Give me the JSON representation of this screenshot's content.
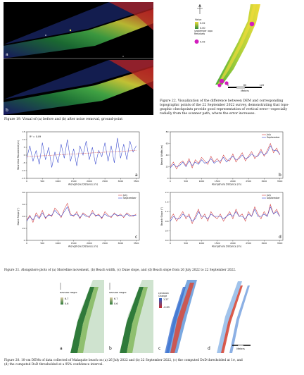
{
  "fig19": {
    "panel_a": "a",
    "panel_b": "b",
    "caption": "Figure 19.  Visual of (a) before and (b) after noise removal, ground-point"
  },
  "fig22": {
    "legend_value": "Value",
    "legend_high": "0.02",
    "legend_low": "0.00",
    "legend_residuals_title": "September Topo Residuals",
    "legend_residual_value": "0.05",
    "scale_labels": [
      "0",
      "60",
      "120"
    ],
    "scale_unit": "Meters",
    "caption_lines": [
      "Figure 22.  Visualization of the difference between DEM and corresponding",
      "topographic points of the 22 September 2022 survey, demonstrating that topo-",
      "graphic checkpoints provide good representation of vertical error—especially",
      "radially from the scanner path, where the error increases."
    ]
  },
  "fig21": {
    "caption": "Figure 21.  Alongshore plots of (a) Shoreline movement, (b) Beach width, (c) Dune slope, and (d) Beach slope from 26 July 2022 to 22 September 2022.",
    "legend": [
      "July",
      "September"
    ],
    "xlabel": "Alongshore Distance (m)",
    "xticks": [
      "0",
      "500",
      "1000",
      "1500",
      "2000",
      "2500",
      "3000",
      "3500"
    ],
    "chart_data": [
      {
        "type": "line",
        "panel": "a",
        "ylabel": "Shoreline Movement (m)",
        "annotation": "R² = 0.09",
        "ylim": [
          -15,
          15
        ],
        "yticks": [
          "15",
          "10",
          "5",
          "0",
          "-5",
          "-10",
          "-15"
        ],
        "x": [
          0,
          100,
          200,
          300,
          400,
          500,
          600,
          700,
          800,
          900,
          1000,
          1100,
          1200,
          1300,
          1400,
          1500,
          1600,
          1700,
          1800,
          1900,
          2000,
          2100,
          2200,
          2300,
          2400,
          2500,
          2600,
          2700,
          2800,
          2900,
          3000,
          3100,
          3200,
          3300,
          3400,
          3500
        ],
        "series": [
          {
            "name": "",
            "values": [
              -2,
              6,
              -4,
              3,
              -6,
              8,
              -3,
              5,
              -8,
              2,
              -5,
              7,
              -2,
              10,
              -4,
              4,
              -7,
              6,
              0,
              9,
              -3,
              5,
              -6,
              3,
              -1,
              8,
              -4,
              6,
              -5,
              11,
              -2,
              7,
              -3,
              9,
              2,
              6
            ]
          }
        ],
        "trend": [
          -1,
          3
        ]
      },
      {
        "type": "line",
        "panel": "b",
        "ylabel": "Beach Width (m)",
        "ylim": [
          0,
          80
        ],
        "yticks": [
          "80",
          "60",
          "40",
          "20",
          "0"
        ],
        "x": [
          0,
          100,
          200,
          300,
          400,
          500,
          600,
          700,
          800,
          900,
          1000,
          1100,
          1200,
          1300,
          1400,
          1500,
          1600,
          1700,
          1800,
          1900,
          2000,
          2100,
          2200,
          2300,
          2400,
          2500,
          2600,
          2700,
          2800,
          2900,
          3000,
          3100,
          3200,
          3300,
          3400,
          3500
        ],
        "series": [
          {
            "name": "July",
            "values": [
              20,
              28,
              16,
              26,
              30,
              22,
              34,
              18,
              32,
              26,
              36,
              30,
              24,
              38,
              28,
              34,
              26,
              40,
              32,
              30,
              42,
              28,
              36,
              44,
              30,
              38,
              46,
              34,
              40,
              50,
              38,
              48,
              60,
              44,
              52,
              40
            ]
          },
          {
            "name": "September",
            "values": [
              18,
              24,
              20,
              22,
              28,
              20,
              30,
              22,
              28,
              24,
              32,
              26,
              28,
              34,
              26,
              30,
              30,
              36,
              28,
              34,
              38,
              32,
              34,
              40,
              34,
              36,
              42,
              38,
              38,
              46,
              40,
              44,
              56,
              48,
              48,
              42
            ]
          }
        ]
      },
      {
        "type": "line",
        "panel": "c",
        "ylabel": "Dune Slope (°)",
        "ylim": [
          0,
          80
        ],
        "yticks": [
          "80",
          "60",
          "40",
          "20",
          "0"
        ],
        "x": [
          0,
          100,
          200,
          300,
          400,
          500,
          600,
          700,
          800,
          900,
          1000,
          1100,
          1200,
          1300,
          1400,
          1500,
          1600,
          1700,
          1800,
          1900,
          2000,
          2100,
          2200,
          2300,
          2400,
          2500,
          2600,
          2700,
          2800,
          2900,
          3000,
          3100,
          3200,
          3300,
          3400,
          3500
        ],
        "series": [
          {
            "name": "July",
            "values": [
              34,
              42,
              30,
              46,
              38,
              50,
              36,
              44,
              40,
              54,
              48,
              38,
              52,
              62,
              44,
              40,
              48,
              36,
              46,
              42,
              38,
              50,
              40,
              44,
              36,
              48,
              42,
              38,
              46,
              40,
              44,
              38,
              46,
              42,
              40,
              44
            ]
          },
          {
            "name": "September",
            "values": [
              32,
              40,
              34,
              42,
              36,
              46,
              38,
              42,
              42,
              50,
              44,
              40,
              48,
              56,
              42,
              42,
              44,
              38,
              44,
              40,
              40,
              46,
              42,
              42,
              38,
              44,
              40,
              40,
              44,
              42,
              42,
              40,
              44,
              40,
              42,
              42
            ]
          }
        ]
      },
      {
        "type": "line",
        "panel": "d",
        "ylabel": "Beach Slope (°)",
        "ylim": [
          0,
          2.0
        ],
        "yticks": [
          "2.0",
          "1.6",
          "1.2",
          "0.8",
          "0.4",
          "0.0"
        ],
        "x": [
          0,
          100,
          200,
          300,
          400,
          500,
          600,
          700,
          800,
          900,
          1000,
          1100,
          1200,
          1300,
          1400,
          1500,
          1600,
          1700,
          1800,
          1900,
          2000,
          2100,
          2200,
          2300,
          2400,
          2500,
          2600,
          2700,
          2800,
          2900,
          3000,
          3100,
          3200,
          3300,
          3400,
          3500
        ],
        "series": [
          {
            "name": "July",
            "values": [
              0.9,
              1.1,
              0.8,
              1.0,
              1.2,
              0.9,
              1.1,
              0.7,
              1.0,
              1.3,
              0.9,
              1.1,
              0.8,
              1.2,
              1.0,
              0.9,
              1.1,
              0.8,
              1.0,
              1.2,
              0.9,
              1.3,
              1.0,
              1.1,
              0.8,
              1.2,
              1.0,
              1.4,
              1.1,
              0.9,
              1.2,
              1.0,
              1.5,
              1.1,
              1.3,
              1.0
            ]
          },
          {
            "name": "September",
            "values": [
              0.8,
              1.0,
              0.9,
              0.9,
              1.1,
              1.0,
              1.0,
              0.8,
              0.9,
              1.2,
              1.0,
              1.0,
              0.9,
              1.1,
              1.0,
              1.0,
              1.0,
              0.9,
              1.0,
              1.1,
              1.0,
              1.2,
              1.0,
              1.0,
              0.9,
              1.1,
              1.0,
              1.3,
              1.0,
              1.0,
              1.1,
              1.0,
              1.4,
              1.1,
              1.2,
              1.0
            ]
          }
        ]
      }
    ]
  },
  "fig20": {
    "panel_labels": [
      "a",
      "b",
      "c",
      "d"
    ],
    "height_title": "NAVD88 Height",
    "height_high": "6.7",
    "height_low": "0.6",
    "change_title": "Elevation Change",
    "change_high": "1.27",
    "change_low": "-0.83",
    "scale_unit": "Meters",
    "caption_lines": [
      "Figure 20.  10-cm DEMs of data collected of Malaquite beach on (a) 26 July 2022 and (b) 22 September 2022, (c) the computed DoD thresholded at 1σ, and",
      "(d) the computed DoD thresholded at a 95% confidence interval."
    ]
  },
  "colors": {
    "july": "#d33a3a",
    "september": "#3344cc",
    "single": "#3344cc",
    "trend": "#d33a3a"
  }
}
